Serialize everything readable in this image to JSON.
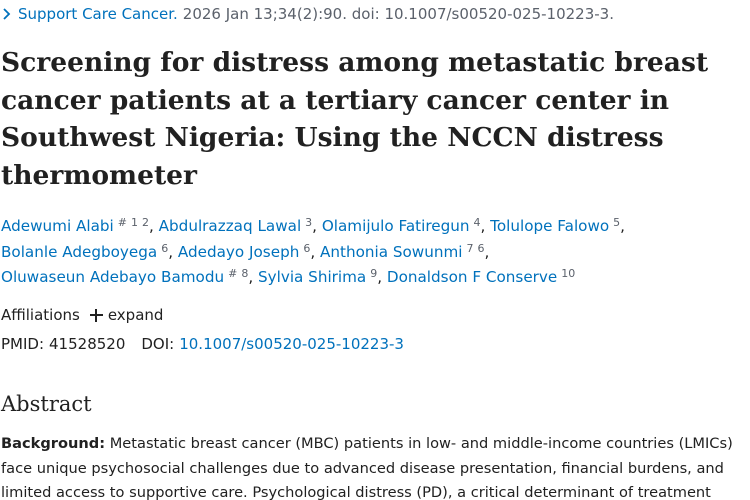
{
  "journal": {
    "name": "Support Care Cancer.",
    "citation": "2026 Jan 13;34(2):90. doi: 10.1007/s00520-025-10223-3."
  },
  "title": "Screening for distress among metastatic breast cancer patients at a tertiary cancer center in Southwest Nigeria: Using the NCCN distress thermometer",
  "authors": [
    {
      "name": "Adewumi Alabi",
      "marks": [
        "#",
        "1",
        "2"
      ]
    },
    {
      "name": "Abdulrazzaq Lawal",
      "marks": [
        "3"
      ]
    },
    {
      "name": "Olamijulo Fatiregun",
      "marks": [
        "4"
      ]
    },
    {
      "name": "Tolulope Falowo",
      "marks": [
        "5"
      ]
    },
    {
      "name": "Bolanle Adegboyega",
      "marks": [
        "6"
      ]
    },
    {
      "name": "Adedayo Joseph",
      "marks": [
        "6"
      ]
    },
    {
      "name": "Anthonia Sowunmi",
      "marks": [
        "7",
        "6"
      ]
    },
    {
      "name": "Oluwaseun Adebayo Bamodu",
      "marks": [
        "#",
        "8"
      ]
    },
    {
      "name": "Sylvia Shirima",
      "marks": [
        "9"
      ]
    },
    {
      "name": "Donaldson F Conserve",
      "marks": [
        "10"
      ]
    }
  ],
  "affiliations": {
    "label": "Affiliations",
    "expand_label": "expand"
  },
  "identifiers": {
    "pmid_label": "PMID:",
    "pmid": "41528520",
    "doi_label": "DOI:",
    "doi": "10.1007/s00520-025-10223-3"
  },
  "abstract": {
    "heading": "Abstract",
    "background_label": "Background:",
    "background_text": "Metastatic breast cancer (MBC) patients in low- and middle-income countries (LMICs) face unique psychosocial challenges due to advanced disease presentation, financial burdens, and limited access to supportive care. Psychological distress (PD), a critical determinant of treatment"
  },
  "colors": {
    "link": "#0071bc",
    "text": "#212121",
    "muted": "#5b616b"
  },
  "icons": {
    "journal_chevron": "chevron-right-icon",
    "expand": "plus-icon"
  }
}
